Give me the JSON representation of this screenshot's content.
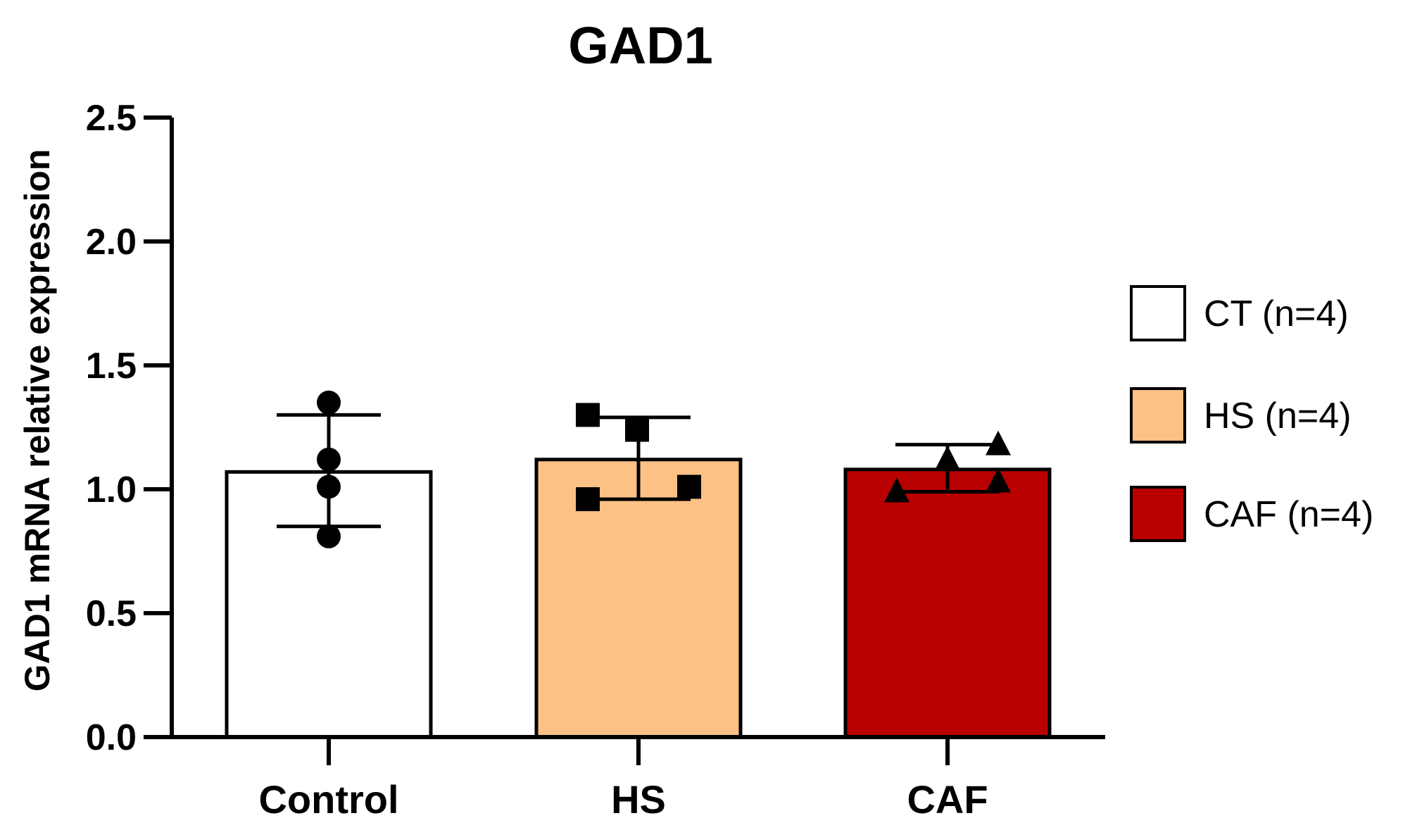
{
  "chart_data": {
    "type": "bar",
    "title": "GAD1",
    "xlabel": "",
    "ylabel": "GAD1 mRNA relative expression",
    "ylim": [
      0,
      2.5
    ],
    "yticks": [
      0,
      0.5,
      1,
      1.5,
      2,
      2.5
    ],
    "ytick_labels": [
      "0.0",
      "0.5",
      "1.0",
      "1.5",
      "2.0",
      "2.5"
    ],
    "categories": [
      "Control",
      "HS",
      "CAF"
    ],
    "series": [
      {
        "name": "CT (n=4)",
        "group": "Control",
        "mean": 1.07,
        "error_low": 0.85,
        "error_high": 1.3,
        "points": [
          1.35,
          1.12,
          1.01,
          0.81
        ],
        "marker": "circle",
        "color": "#ffffff"
      },
      {
        "name": "HS (n=4)",
        "group": "HS",
        "mean": 1.12,
        "error_low": 0.96,
        "error_high": 1.29,
        "points": [
          1.3,
          1.24,
          0.96,
          1.01
        ],
        "marker": "square",
        "color": "#fbc185"
      },
      {
        "name": "CAF (n=4)",
        "group": "CAF",
        "mean": 1.08,
        "error_low": 0.99,
        "error_high": 1.18,
        "points": [
          0.99,
          1.12,
          1.18,
          1.03
        ],
        "marker": "triangle",
        "color": "#b80000"
      }
    ],
    "legend": {
      "position": "right",
      "entries": [
        "CT (n=4)",
        "HS (n=4)",
        "CAF (n=4)"
      ]
    },
    "grid": false
  }
}
